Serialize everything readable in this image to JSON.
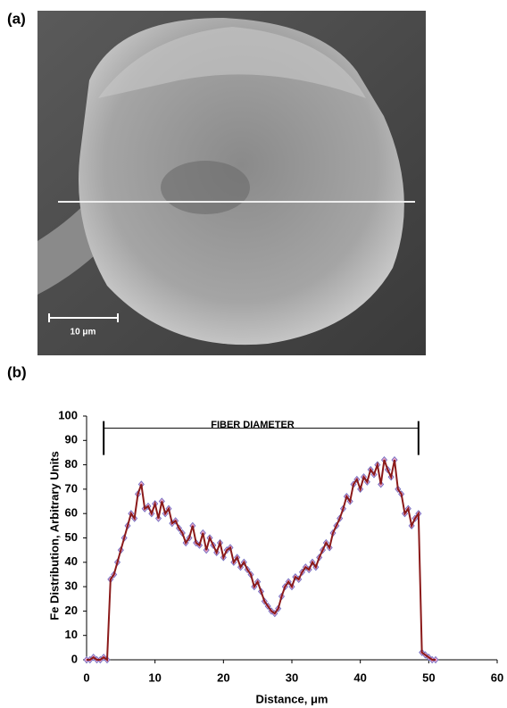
{
  "panels": [
    "(a)",
    "(b)"
  ],
  "image": {
    "scale_bar": "10 μm"
  },
  "chart_data": {
    "type": "line",
    "xlabel": "Distance, μm",
    "ylabel": "Fe Distribution, Arbitrary Units",
    "annotation": {
      "text": "FIBER DIAMETER",
      "x": [
        2.5,
        48.5
      ],
      "y": 95
    },
    "color": "#8b1a1a",
    "marker_color": "#e6a3c8",
    "marker_edge": "#6a6ac0",
    "xlim": [
      0,
      60
    ],
    "xticks": [
      0,
      10,
      20,
      30,
      40,
      50,
      60
    ],
    "ylim": [
      0,
      100
    ],
    "yticks": [
      0,
      10,
      20,
      30,
      40,
      50,
      60,
      70,
      80,
      90,
      100
    ],
    "x": [
      0,
      0.5,
      1,
      1.5,
      2,
      2.5,
      3,
      3.5,
      4,
      4.5,
      5,
      5.5,
      6,
      6.5,
      7,
      7.5,
      8,
      8.5,
      9,
      9.5,
      10,
      10.5,
      11,
      11.5,
      12,
      12.5,
      13,
      13.5,
      14,
      14.5,
      15,
      15.5,
      16,
      16.5,
      17,
      17.5,
      18,
      18.5,
      19,
      19.5,
      20,
      20.5,
      21,
      21.5,
      22,
      22.5,
      23,
      23.5,
      24,
      24.5,
      25,
      25.5,
      26,
      26.5,
      27,
      27.5,
      28,
      28.5,
      29,
      29.5,
      30,
      30.5,
      31,
      31.5,
      32,
      32.5,
      33,
      33.5,
      34,
      34.5,
      35,
      35.5,
      36,
      36.5,
      37,
      37.5,
      38,
      38.5,
      39,
      39.5,
      40,
      40.5,
      41,
      41.5,
      42,
      42.5,
      43,
      43.5,
      44,
      44.5,
      45,
      45.5,
      46,
      46.5,
      47,
      47.5,
      48,
      48.5,
      49,
      49.5,
      50,
      50.5,
      51
    ],
    "values": [
      0,
      0,
      1,
      0,
      0,
      1,
      0,
      33,
      35,
      40,
      45,
      50,
      55,
      60,
      58,
      68,
      72,
      62,
      63,
      60,
      64,
      58,
      65,
      60,
      62,
      56,
      57,
      54,
      52,
      48,
      50,
      55,
      48,
      47,
      52,
      45,
      50,
      47,
      44,
      48,
      42,
      45,
      46,
      40,
      42,
      38,
      40,
      37,
      35,
      30,
      32,
      28,
      24,
      22,
      20,
      19,
      21,
      26,
      30,
      32,
      30,
      34,
      33,
      36,
      38,
      37,
      40,
      38,
      42,
      45,
      48,
      46,
      52,
      55,
      58,
      62,
      67,
      65,
      72,
      74,
      70,
      75,
      73,
      78,
      76,
      80,
      72,
      82,
      78,
      75,
      82,
      70,
      68,
      60,
      62,
      55,
      58,
      60,
      3,
      2,
      1,
      0,
      0
    ]
  }
}
